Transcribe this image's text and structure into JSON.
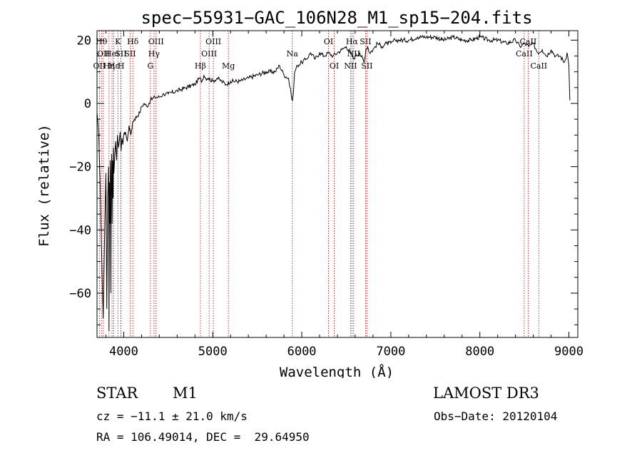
{
  "chart_data": {
    "type": "line",
    "title": "spec−55931−GAC_106N28_M1_sp15−204.fits",
    "xlabel": "Wavelength (Å)",
    "ylabel": "Flux (relative)",
    "xlim": [
      3700,
      9100
    ],
    "ylim": [
      -74,
      23
    ],
    "xticks": [
      4000,
      5000,
      6000,
      7000,
      8000,
      9000
    ],
    "xtick_labels": [
      "4000",
      "5000",
      "6000",
      "7000",
      "8000",
      "9000"
    ],
    "yticks": [
      -60,
      -40,
      -20,
      0,
      20
    ],
    "ytick_labels": [
      "−60",
      "−40",
      "−20",
      "0",
      "20"
    ],
    "series": [
      {
        "name": "flux",
        "x": [
          3700,
          3720,
          3735,
          3750,
          3760,
          3770,
          3780,
          3790,
          3800,
          3810,
          3820,
          3830,
          3835,
          3840,
          3845,
          3850,
          3855,
          3860,
          3865,
          3870,
          3875,
          3880,
          3885,
          3890,
          3900,
          3910,
          3920,
          3930,
          3940,
          3950,
          3960,
          3970,
          3980,
          3990,
          4000,
          4020,
          4040,
          4060,
          4080,
          4100,
          4120,
          4150,
          4180,
          4200,
          4230,
          4260,
          4300,
          4350,
          4400,
          4450,
          4500,
          4600,
          4700,
          4800,
          4850,
          4880,
          4900,
          4920,
          4950,
          5000,
          5050,
          5100,
          5150,
          5200,
          5300,
          5400,
          5500,
          5600,
          5700,
          5750,
          5800,
          5850,
          5880,
          5895,
          5900,
          5905,
          5920,
          5950,
          6000,
          6050,
          6100,
          6150,
          6200,
          6250,
          6300,
          6350,
          6400,
          6450,
          6500,
          6550,
          6580,
          6600,
          6650,
          6700,
          6720,
          6740,
          6760,
          6800,
          6850,
          6900,
          6950,
          7000,
          7050,
          7100,
          7200,
          7300,
          7400,
          7500,
          7600,
          7700,
          7800,
          7900,
          8000,
          8100,
          8200,
          8300,
          8400,
          8450,
          8500,
          8550,
          8600,
          8650,
          8700,
          8750,
          8800,
          8850,
          8900,
          8950,
          8980,
          9000,
          9010
        ],
        "values": [
          -3,
          -10,
          -25,
          -45,
          -58,
          -68,
          -50,
          -35,
          -22,
          -65,
          -30,
          -20,
          -72,
          -25,
          -38,
          -18,
          -60,
          -22,
          -16,
          -38,
          -18,
          -30,
          -14,
          -22,
          -16,
          -12,
          -18,
          -10,
          -14,
          -12,
          -9,
          -15,
          -11,
          -13,
          -10,
          -9,
          -12,
          -7,
          -10,
          -6,
          -5,
          -4,
          -3,
          -1,
          0,
          -1,
          1,
          2,
          2,
          3,
          3,
          4,
          5,
          6,
          8,
          7,
          9,
          8,
          8,
          7,
          8,
          7,
          6,
          7,
          7,
          8,
          9,
          10,
          10,
          12,
          9,
          8,
          3,
          1,
          2,
          3,
          10,
          12,
          13,
          14,
          16,
          14,
          16,
          15,
          16,
          15,
          16,
          17,
          18,
          16,
          14,
          15,
          16,
          13,
          17,
          18,
          16,
          17,
          19,
          18,
          19,
          19,
          20,
          20,
          20,
          21,
          21,
          21,
          20,
          21,
          20,
          20,
          21,
          20,
          20,
          19,
          20,
          18,
          19,
          18,
          19,
          16,
          17,
          15,
          17,
          15,
          15,
          13,
          16,
          12,
          1
        ],
        "color": "#000000"
      }
    ],
    "line_color": "#b30000",
    "lines": [
      {
        "x": 3727,
        "label": "OII",
        "row": 3
      },
      {
        "x": 3750,
        "label": "Hθ",
        "row": 1
      },
      {
        "x": 3771,
        "label": "OII",
        "row": 2
      },
      {
        "x": 3835,
        "label": "Hη",
        "row": 3
      },
      {
        "x": 3869,
        "label": "HeI",
        "row": 2
      },
      {
        "x": 3889,
        "label": "Hε",
        "row": 3
      },
      {
        "x": 3934,
        "label": "K",
        "row": 1
      },
      {
        "x": 3968,
        "label": "SII",
        "row": 2
      },
      {
        "x": 3970,
        "label": "H",
        "row": 3
      },
      {
        "x": 4072,
        "label": "SII",
        "row": 2
      },
      {
        "x": 4102,
        "label": "Hδ",
        "row": 1
      },
      {
        "x": 4300,
        "label": "G",
        "row": 3
      },
      {
        "x": 4340,
        "label": "Hγ",
        "row": 2
      },
      {
        "x": 4363,
        "label": "OIII",
        "row": 1
      },
      {
        "x": 4861,
        "label": "Hβ",
        "row": 3
      },
      {
        "x": 4959,
        "label": "OIII",
        "row": 2
      },
      {
        "x": 5007,
        "label": "OIII",
        "row": 1
      },
      {
        "x": 5175,
        "label": "Mg",
        "row": 3
      },
      {
        "x": 5893,
        "label": "Na",
        "row": 2
      },
      {
        "x": 6300,
        "label": "OI",
        "row": 1
      },
      {
        "x": 6364,
        "label": "OI",
        "row": 3
      },
      {
        "x": 6548,
        "label": "NII",
        "row": 3
      },
      {
        "x": 6563,
        "label": "Hα",
        "row": 1
      },
      {
        "x": 6583,
        "label": "NII",
        "row": 2
      },
      {
        "x": 6716,
        "label": "SII",
        "row": 1
      },
      {
        "x": 6731,
        "label": "SII",
        "row": 3
      },
      {
        "x": 8498,
        "label": "CaII",
        "row": 2
      },
      {
        "x": 8542,
        "label": "CaII",
        "row": 1
      },
      {
        "x": 8662,
        "label": "CaII",
        "row": 3
      }
    ]
  },
  "info": {
    "object_class": "STAR",
    "subclass": "M1",
    "survey": "LAMOST DR3",
    "cz": "cz = −11.1 ± 21.0 km/s",
    "obs_date": "Obs−Date: 20120104",
    "coords": "RA = 106.49014, DEC =  29.64950"
  }
}
